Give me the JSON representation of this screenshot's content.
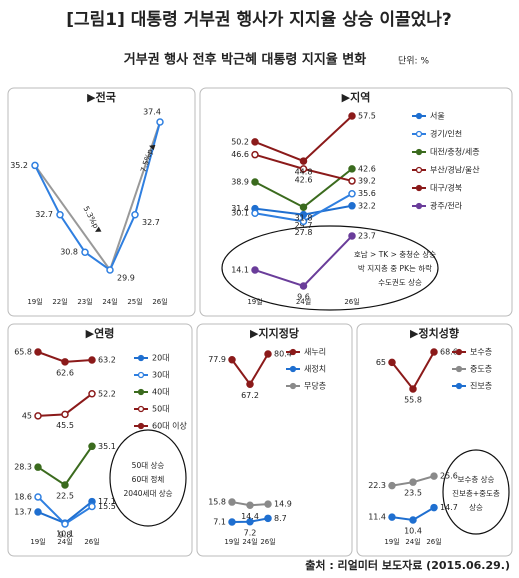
{
  "title": "[그림1] 대통령 거부권 행사가 지지율 상승 이끌었나?",
  "subtitle": "거부권 행사 전후 박근혜 대통령 지지율 변화",
  "unit": "단위: %",
  "source": "출처 : 리얼미터 보도자료 (2015.06.29.)",
  "chart_data": [
    {
      "type": "line",
      "title": "▶전국",
      "categories": [
        "19일",
        "22일",
        "23일",
        "24일",
        "25일",
        "26일"
      ],
      "series": [
        {
          "color": "#2f7fe0",
          "marker": "open",
          "values": [
            35.2,
            32.7,
            30.8,
            29.9,
            32.7,
            37.4
          ]
        }
      ],
      "annotations": [
        "5.3%p▼",
        "7.5%p▲"
      ]
    },
    {
      "type": "line",
      "title": "▶지역",
      "categories": [
        "19일",
        "24일",
        "26일"
      ],
      "series": [
        {
          "name": "서울",
          "color": "#1f6fd0",
          "marker": "filled",
          "values": [
            31.4,
            29.7,
            32.2
          ]
        },
        {
          "name": "경기/인천",
          "color": "#2f7fe0",
          "marker": "open",
          "values": [
            30.1,
            27.8,
            35.6
          ]
        },
        {
          "name": "대전/충청/세종",
          "color": "#3b6b1e",
          "marker": "filled",
          "values": [
            38.9,
            31.8,
            42.6
          ]
        },
        {
          "name": "부산/경남/울산",
          "color": "#8b1a1a",
          "marker": "open",
          "values": [
            46.6,
            42.6,
            39.2
          ]
        },
        {
          "name": "대구/경북",
          "color": "#8b1a1a",
          "marker": "filled",
          "values": [
            50.2,
            44.8,
            57.5
          ]
        },
        {
          "name": "광주/전라",
          "color": "#6a3d9a",
          "marker": "filled",
          "values": [
            14.1,
            9.6,
            23.7
          ]
        }
      ],
      "annotations": [
        "호남 > TK > 충청순 상승",
        "박 지지층 중 PK는 하락",
        "수도권도 상승"
      ]
    },
    {
      "type": "line",
      "title": "▶연령",
      "categories": [
        "19일",
        "24일",
        "26일"
      ],
      "series": [
        {
          "name": "20대",
          "color": "#1f6fd0",
          "marker": "filled",
          "values": [
            13.7,
            10.1,
            17.1
          ]
        },
        {
          "name": "30대",
          "color": "#2f7fe0",
          "marker": "open",
          "values": [
            18.6,
            9.8,
            15.5
          ]
        },
        {
          "name": "40대",
          "color": "#3b6b1e",
          "marker": "filled",
          "values": [
            28.3,
            22.5,
            35.1
          ]
        },
        {
          "name": "50대",
          "color": "#8b1a1a",
          "marker": "open",
          "values": [
            45.0,
            45.5,
            52.2
          ]
        },
        {
          "name": "60대 이상",
          "color": "#8b1a1a",
          "marker": "filled",
          "values": [
            65.8,
            62.6,
            63.2
          ]
        }
      ],
      "annotations": [
        "50대 상승",
        "60대 정체",
        "2040세대 상승"
      ]
    },
    {
      "type": "line",
      "title": "▶지지정당",
      "categories": [
        "19일",
        "24일",
        "26일"
      ],
      "series": [
        {
          "name": "새누리",
          "color": "#8b1a1a",
          "marker": "filled",
          "values": [
            77.9,
            67.2,
            80.4
          ]
        },
        {
          "name": "새정치",
          "color": "#1f6fd0",
          "marker": "filled",
          "values": [
            7.1,
            7.2,
            8.7
          ]
        },
        {
          "name": "무당층",
          "color": "#8a8a8a",
          "marker": "filled",
          "values": [
            15.8,
            14.4,
            14.9
          ]
        }
      ]
    },
    {
      "type": "line",
      "title": "▶정치성향",
      "categories": [
        "19일",
        "24일",
        "26일"
      ],
      "series": [
        {
          "name": "보수층",
          "color": "#8b1a1a",
          "marker": "filled",
          "values": [
            65.0,
            55.8,
            68.6
          ]
        },
        {
          "name": "중도층",
          "color": "#8a8a8a",
          "marker": "filled",
          "values": [
            22.3,
            23.5,
            25.6
          ]
        },
        {
          "name": "진보층",
          "color": "#1f6fd0",
          "marker": "filled",
          "values": [
            11.4,
            10.4,
            14.7
          ]
        }
      ],
      "annotations": [
        "보수층 상승",
        "진보층+중도층",
        "상승"
      ]
    }
  ]
}
